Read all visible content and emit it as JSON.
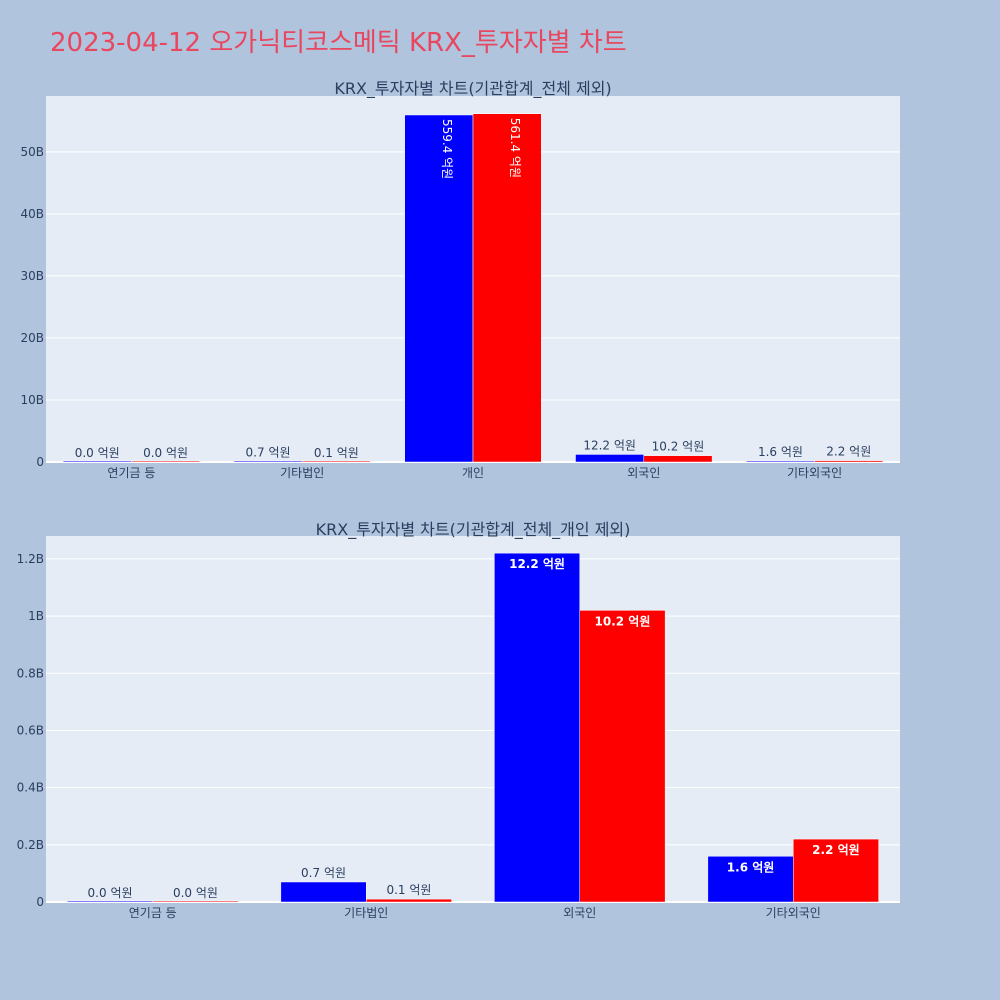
{
  "title": "2023-04-12 오가닉티코스메틱 KRX_투자자별 차트",
  "colors": {
    "background": "#b0c4de",
    "plot_bg": "#e5ecf6",
    "buy": "#0000ff",
    "sell": "#ff0000",
    "title": "#e8475f"
  },
  "chart_data": [
    {
      "type": "bar",
      "title": "KRX_투자자별 차트(기관합계_전체 제외)",
      "categories": [
        "연기금 등",
        "기타법인",
        "개인",
        "외국인",
        "기타외국인"
      ],
      "ylim": [
        0,
        59000000000
      ],
      "yticks": [
        0,
        10000000000,
        20000000000,
        30000000000,
        40000000000,
        50000000000
      ],
      "ytick_labels": [
        "0",
        "10B",
        "20B",
        "30B",
        "40B",
        "50B"
      ],
      "grid": true,
      "series": [
        {
          "color": "#0000ff",
          "values": [
            0,
            70000000,
            55940000000,
            1220000000,
            160000000
          ],
          "labels": [
            "0.0 억원",
            "0.7 억원",
            "559.4 억원",
            "12.2 억원",
            "1.6 억원"
          ]
        },
        {
          "color": "#ff0000",
          "values": [
            0,
            10000000,
            56140000000,
            1020000000,
            220000000
          ],
          "labels": [
            "0.0 억원",
            "0.1 억원",
            "561.4 억원",
            "10.2 억원",
            "2.2 억원"
          ]
        }
      ]
    },
    {
      "type": "bar",
      "title": "KRX_투자자별 차트(기관합계_전체_개인 제외)",
      "categories": [
        "연기금 등",
        "기타법인",
        "외국인",
        "기타외국인"
      ],
      "ylim": [
        0,
        1280000000
      ],
      "yticks": [
        0,
        200000000,
        400000000,
        600000000,
        800000000,
        1000000000,
        1200000000
      ],
      "ytick_labels": [
        "0",
        "0.2B",
        "0.4B",
        "0.6B",
        "0.8B",
        "1B",
        "1.2B"
      ],
      "grid": true,
      "series": [
        {
          "color": "#0000ff",
          "values": [
            0,
            70000000,
            1220000000,
            160000000
          ],
          "labels": [
            "0.0 억원",
            "0.7 억원",
            "12.2 억원",
            "1.6 억원"
          ]
        },
        {
          "color": "#ff0000",
          "values": [
            0,
            10000000,
            1020000000,
            220000000
          ],
          "labels": [
            "0.0 억원",
            "0.1 억원",
            "10.2 억원",
            "2.2 억원"
          ]
        }
      ]
    }
  ]
}
